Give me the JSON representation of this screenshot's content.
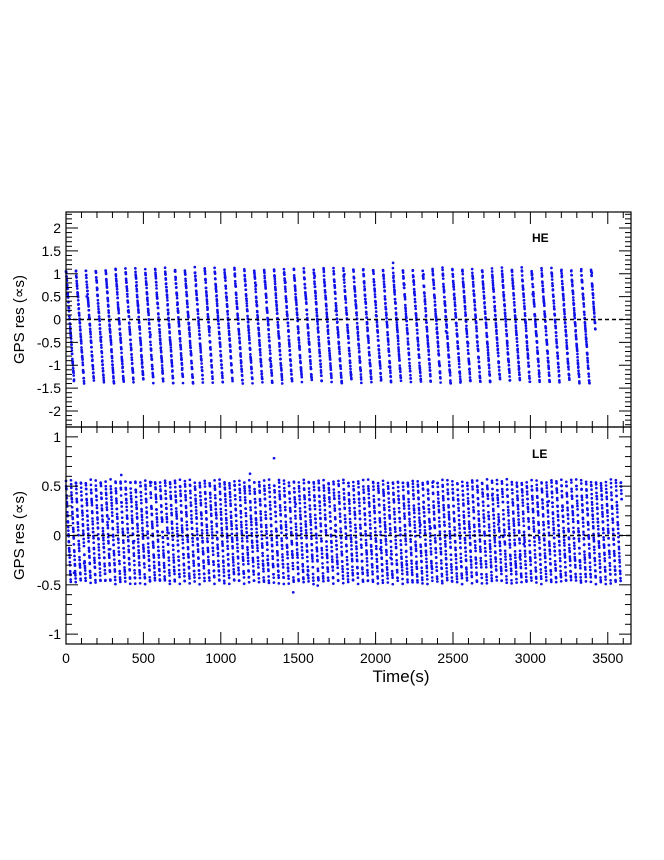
{
  "colors": {
    "points": "#1010e8",
    "axes": "#000000"
  },
  "chart_data": [
    {
      "type": "scatter",
      "panel": "HE",
      "label": "HE",
      "ylabel": "GPS res (∝s)",
      "xlabel": "",
      "xlim": [
        0,
        3650
      ],
      "ylim": [
        -2.35,
        2.35
      ],
      "xticks": [
        0,
        500,
        1000,
        1500,
        2000,
        2500,
        3000,
        3500
      ],
      "yticks": [
        -2,
        -1.5,
        -1,
        -0.5,
        0,
        0.5,
        1,
        1.5,
        2
      ],
      "yticklabels": [
        "-2",
        "-1.5",
        "-1",
        "-0.5",
        "0",
        "0.5",
        "1",
        "1.5",
        "2"
      ],
      "reference_line_y": 0,
      "sawtooth": {
        "x_start": 0,
        "x_end": 3420,
        "period_s": 64,
        "y_top": 1.1,
        "y_bottom": -1.25,
        "drop_slope_per_s": -0.047,
        "point_step_s": 1
      }
    },
    {
      "type": "scatter",
      "panel": "LE",
      "label": "LE",
      "ylabel": "GPS res (∝s)",
      "xlabel": "Time(s)",
      "xlim": [
        0,
        3650
      ],
      "ylim": [
        -1.1,
        1.1
      ],
      "xticks": [
        0,
        500,
        1000,
        1500,
        2000,
        2500,
        3000,
        3500
      ],
      "xticklabels": [
        "0",
        "500",
        "1000",
        "1500",
        "2000",
        "2500",
        "3000",
        "3500"
      ],
      "yticks": [
        -1,
        -0.5,
        0,
        0.5,
        1
      ],
      "yticklabels": [
        "-1",
        "-0.5",
        "0",
        "0.5",
        "1"
      ],
      "reference_line_y": 0,
      "sawtooth": {
        "x_start": 0,
        "x_end": 3590,
        "period_s": 32,
        "y_top": 0.55,
        "y_bottom": -0.5,
        "drop_slope_per_s": -0.033,
        "point_step_s": 1
      }
    }
  ]
}
